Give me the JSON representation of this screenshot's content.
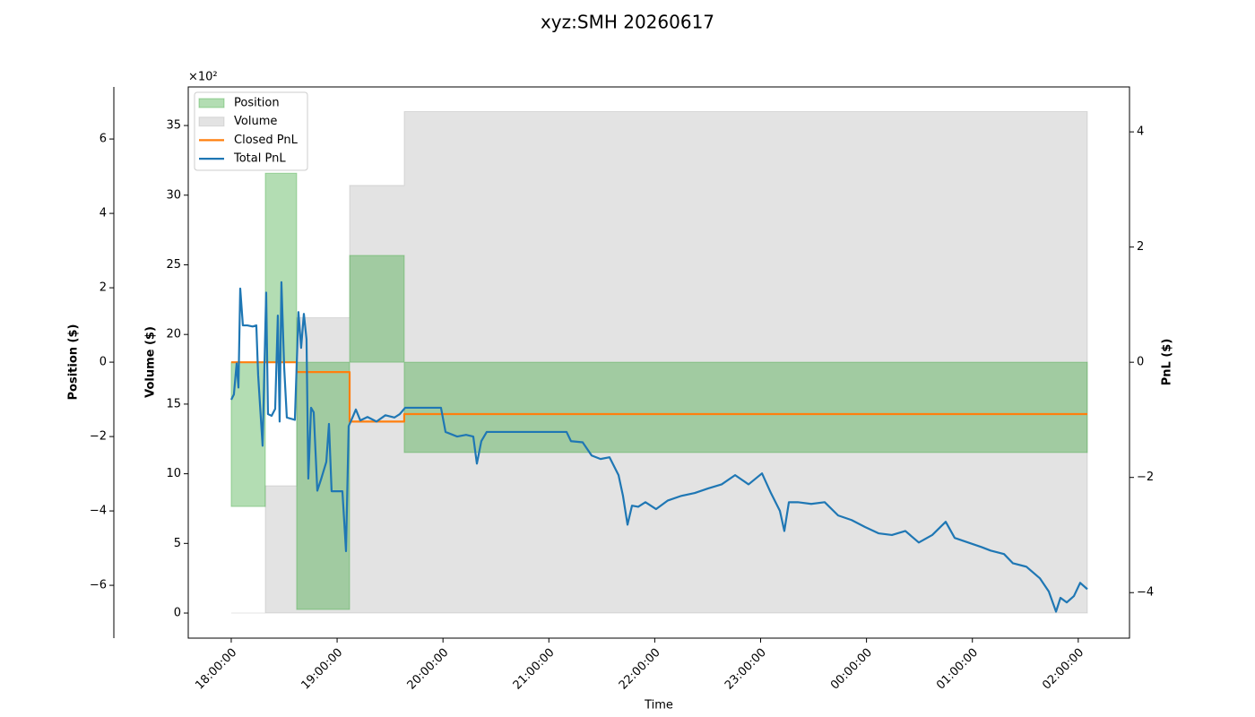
{
  "chart_data": {
    "type": "line",
    "title": "xyz:SMH 20260617",
    "xlabel": "Time",
    "ylabel": "Volume ($)",
    "y2label": "PnL ($)",
    "y3label": "Position ($)",
    "y3_offset_label": "×10²",
    "ycolor": "gray",
    "y3color": "green",
    "legend": "upper left",
    "xlim": [
      17.594,
      26.484
    ],
    "xticks": [
      {
        "value": 18,
        "label": "18:00:00"
      },
      {
        "value": 19,
        "label": "19:00:00"
      },
      {
        "value": 20,
        "label": "20:00:00"
      },
      {
        "value": 21,
        "label": "21:00:00"
      },
      {
        "value": 22,
        "label": "22:00:00"
      },
      {
        "value": 23,
        "label": "23:00:00"
      },
      {
        "value": 24,
        "label": "00:00:00"
      },
      {
        "value": 25,
        "label": "01:00:00"
      },
      {
        "value": 26,
        "label": "02:00:00"
      }
    ],
    "ylim": [
      -1.8,
      37.77
    ],
    "yticks": [
      0,
      5,
      10,
      15,
      20,
      25,
      30,
      35
    ],
    "y2lim": [
      -4.79,
      4.78
    ],
    "y2ticks": [
      {
        "value": -4,
        "label": "−4"
      },
      {
        "value": -2,
        "label": "−2"
      },
      0,
      2,
      4
    ],
    "y3lim": [
      -7.42,
      7.4
    ],
    "y3ticks": [
      {
        "value": -6,
        "label": "−6"
      },
      {
        "value": -4,
        "label": "−4"
      },
      {
        "value": -2,
        "label": "−2"
      },
      0,
      2,
      4,
      6
    ],
    "series": [
      {
        "name": "Position",
        "kind": "area",
        "step": true,
        "axis": "y3",
        "color": "#2ca02c",
        "opacity": 0.36,
        "x": [
          18.0,
          18.322,
          18.618,
          19.118,
          19.634,
          26.086
        ],
        "values": [
          -3.88,
          5.08,
          -6.65,
          2.87,
          -2.43,
          -2.43
        ]
      },
      {
        "name": "Volume",
        "kind": "area",
        "step": true,
        "axis": "y",
        "color": "#808080",
        "opacity": 0.22,
        "x": [
          18.0,
          18.322,
          18.618,
          19.118,
          19.634,
          26.086
        ],
        "values": [
          0,
          9.14,
          21.2,
          30.7,
          36.0,
          36.0
        ]
      },
      {
        "name": "Closed PnL",
        "kind": "line",
        "step": true,
        "axis": "y2",
        "color": "#ff7f0e",
        "x": [
          18.0,
          18.618,
          19.118,
          19.634,
          26.086
        ],
        "values": [
          0,
          -0.17,
          -1.03,
          -0.9,
          -0.9
        ]
      },
      {
        "name": "Total PnL",
        "kind": "line",
        "step": false,
        "axis": "y2",
        "color": "#1f77b4",
        "x": [
          18.0,
          18.025,
          18.051,
          18.068,
          18.085,
          18.11,
          18.152,
          18.203,
          18.237,
          18.254,
          18.296,
          18.33,
          18.347,
          18.381,
          18.415,
          18.44,
          18.457,
          18.474,
          18.5,
          18.525,
          18.601,
          18.635,
          18.66,
          18.686,
          18.711,
          18.728,
          18.754,
          18.779,
          18.813,
          18.847,
          18.898,
          18.923,
          18.948,
          19.05,
          19.084,
          19.109,
          19.152,
          19.177,
          19.219,
          19.287,
          19.372,
          19.456,
          19.541,
          19.592,
          19.643,
          19.795,
          19.981,
          20.024,
          20.134,
          20.218,
          20.286,
          20.32,
          20.362,
          20.413,
          20.726,
          21.167,
          21.209,
          21.319,
          21.404,
          21.488,
          21.573,
          21.658,
          21.7,
          21.743,
          21.785,
          21.844,
          21.912,
          22.013,
          22.124,
          22.251,
          22.378,
          22.505,
          22.632,
          22.759,
          22.886,
          23.013,
          23.097,
          23.182,
          23.224,
          23.267,
          23.351,
          23.478,
          23.605,
          23.732,
          23.859,
          23.986,
          24.113,
          24.24,
          24.367,
          24.494,
          24.621,
          24.748,
          24.833,
          24.96,
          25.087,
          25.172,
          25.299,
          25.383,
          25.51,
          25.637,
          25.722,
          25.79,
          25.832,
          25.891,
          25.959,
          26.018,
          26.086
        ],
        "values": [
          -0.65,
          -0.56,
          -0.02,
          -0.44,
          1.28,
          0.64,
          0.64,
          0.62,
          0.64,
          -0.22,
          -1.45,
          1.21,
          -0.9,
          -0.93,
          -0.81,
          0.81,
          -1.03,
          1.39,
          -0.09,
          -0.96,
          -1.0,
          0.87,
          0.25,
          0.84,
          0.4,
          -2.02,
          -0.79,
          -0.87,
          -2.23,
          -2.04,
          -1.73,
          -1.07,
          -2.24,
          -2.24,
          -3.28,
          -1.11,
          -0.93,
          -0.82,
          -1.01,
          -0.95,
          -1.03,
          -0.92,
          -0.96,
          -0.9,
          -0.79,
          -0.79,
          -0.79,
          -1.21,
          -1.29,
          -1.26,
          -1.29,
          -1.76,
          -1.37,
          -1.21,
          -1.21,
          -1.21,
          -1.37,
          -1.39,
          -1.62,
          -1.68,
          -1.65,
          -1.96,
          -2.32,
          -2.82,
          -2.49,
          -2.51,
          -2.43,
          -2.55,
          -2.4,
          -2.32,
          -2.27,
          -2.19,
          -2.12,
          -1.96,
          -2.12,
          -1.93,
          -2.27,
          -2.58,
          -2.93,
          -2.43,
          -2.43,
          -2.46,
          -2.43,
          -2.66,
          -2.74,
          -2.86,
          -2.97,
          -3.0,
          -2.93,
          -3.13,
          -3.0,
          -2.77,
          -3.05,
          -3.13,
          -3.21,
          -3.27,
          -3.33,
          -3.49,
          -3.55,
          -3.75,
          -3.98,
          -4.33,
          -4.09,
          -4.17,
          -4.06,
          -3.83,
          -3.94
        ]
      }
    ]
  }
}
